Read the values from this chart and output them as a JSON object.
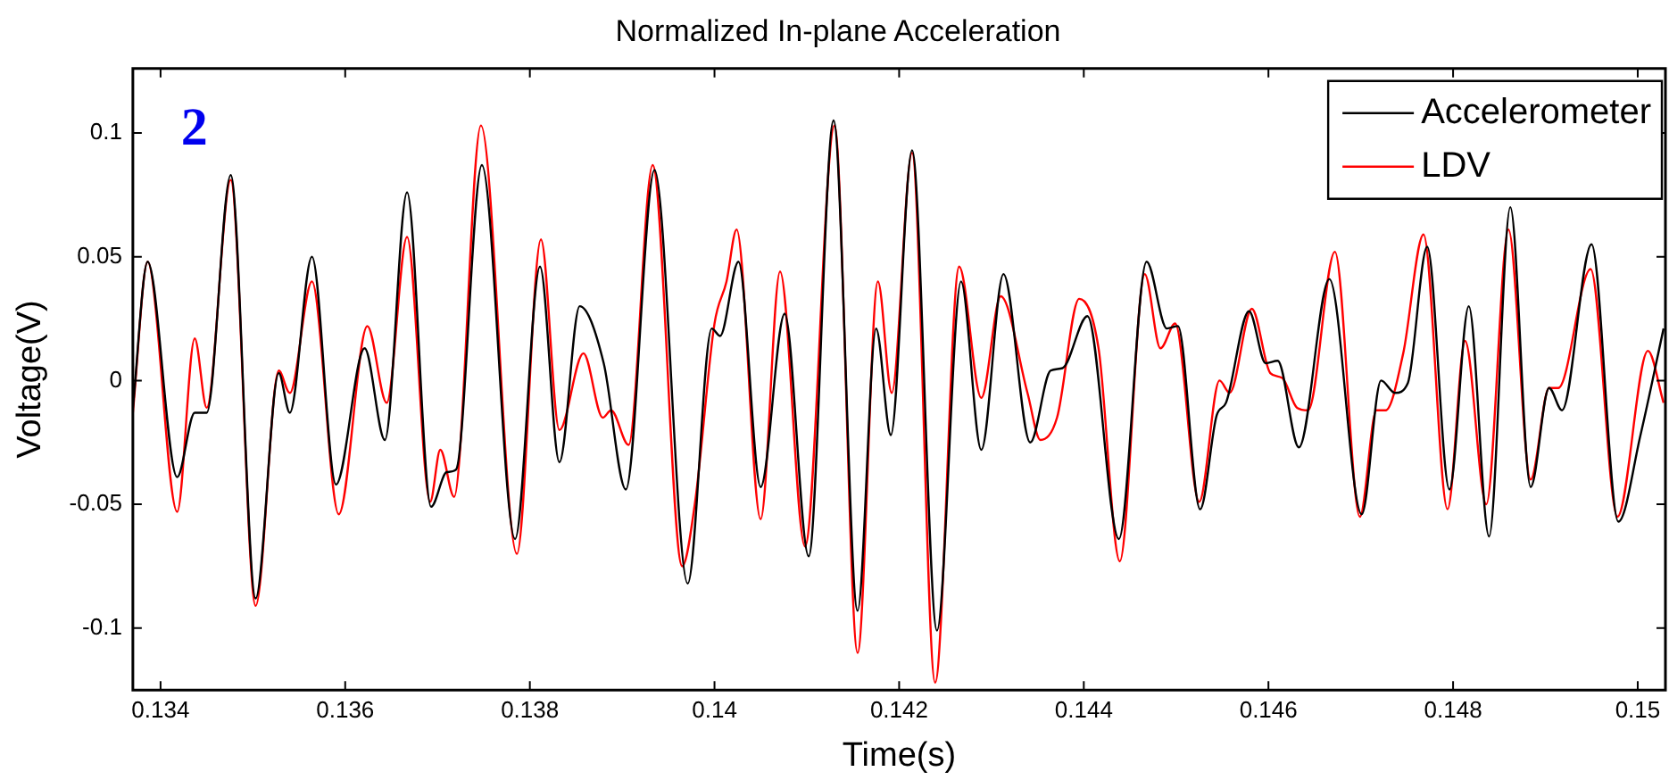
{
  "chart_data": {
    "type": "line",
    "title": "Normalized In-plane Acceleration",
    "xlabel": "Time(s)",
    "ylabel": "Voltage(V)",
    "annotations": [
      "2"
    ],
    "xlim": [
      0.1337,
      0.1503
    ],
    "xticks": [
      0.134,
      0.136,
      0.138,
      0.14,
      0.142,
      0.144,
      0.146,
      0.148,
      0.15
    ],
    "ylim": [
      -0.125,
      0.126
    ],
    "yticks": [
      -0.1,
      -0.05,
      0,
      0.05,
      0.1
    ],
    "grid": false,
    "legend": "top right",
    "line_style": "solid",
    "marker": "none",
    "series": [
      {
        "name": "Accelerometer",
        "color": "#000000",
        "x": [
          0.1337,
          0.13386,
          0.13418,
          0.13437,
          0.1345,
          0.13476,
          0.13503,
          0.13528,
          0.1354,
          0.13564,
          0.1359,
          0.13621,
          0.13643,
          0.13667,
          0.13693,
          0.1371,
          0.1372,
          0.13748,
          0.13784,
          0.13811,
          0.13832,
          0.13854,
          0.1388,
          0.13904,
          0.13935,
          0.13971,
          0.13997,
          0.14006,
          0.14026,
          0.1405,
          0.14076,
          0.14102,
          0.14129,
          0.14155,
          0.14175,
          0.14191,
          0.14214,
          0.14241,
          0.14267,
          0.14289,
          0.14313,
          0.14342,
          0.14364,
          0.14377,
          0.14404,
          0.14438,
          0.14468,
          0.1449,
          0.14502,
          0.14526,
          0.14544,
          0.14554,
          0.14579,
          0.14597,
          0.1461,
          0.14633,
          0.14666,
          0.14701,
          0.14722,
          0.14737,
          0.14751,
          0.14772,
          0.14796,
          0.14817,
          0.14839,
          0.14862,
          0.14884,
          0.14904,
          0.14918,
          0.1495,
          0.14979,
          0.15003,
          0.15028
        ],
        "values": [
          -0.011,
          0.048,
          -0.039,
          -0.013,
          -0.013,
          0.083,
          -0.088,
          0.003,
          -0.013,
          0.05,
          -0.042,
          0.013,
          -0.024,
          0.076,
          -0.051,
          -0.037,
          -0.036,
          0.087,
          -0.064,
          0.046,
          -0.033,
          0.03,
          0.007,
          -0.044,
          0.085,
          -0.082,
          0.021,
          0.018,
          0.048,
          -0.043,
          0.027,
          -0.071,
          0.105,
          -0.093,
          0.021,
          -0.022,
          0.093,
          -0.101,
          0.04,
          -0.028,
          0.043,
          -0.025,
          0.004,
          0.005,
          0.026,
          -0.064,
          0.048,
          0.021,
          0.022,
          -0.052,
          -0.014,
          -0.009,
          0.028,
          0.007,
          0.008,
          -0.027,
          0.041,
          -0.054,
          0,
          -0.005,
          -0.001,
          0.054,
          -0.044,
          0.03,
          -0.063,
          0.07,
          -0.043,
          -0.003,
          -0.012,
          0.055,
          -0.057,
          -0.022,
          0.021
        ]
      },
      {
        "name": "LDV",
        "color": "#ff0000",
        "x": [
          0.1337,
          0.13386,
          0.13418,
          0.13437,
          0.1345,
          0.13476,
          0.13503,
          0.13528,
          0.1354,
          0.13564,
          0.13593,
          0.13624,
          0.13645,
          0.13667,
          0.13692,
          0.13703,
          0.13718,
          0.13747,
          0.13786,
          0.13812,
          0.13832,
          0.13858,
          0.13879,
          0.13888,
          0.13907,
          0.13933,
          0.13965,
          0.13979,
          0.14,
          0.14013,
          0.14024,
          0.1405,
          0.14071,
          0.14098,
          0.1413,
          0.14155,
          0.14177,
          0.14192,
          0.14214,
          0.14239,
          0.14265,
          0.14289,
          0.1431,
          0.14339,
          0.14353,
          0.14371,
          0.14395,
          0.14416,
          0.14439,
          0.14466,
          0.14483,
          0.14499,
          0.14525,
          0.14547,
          0.14558,
          0.14582,
          0.14602,
          0.14615,
          0.14631,
          0.14643,
          0.14672,
          0.14699,
          0.14717,
          0.14727,
          0.14746,
          0.14768,
          0.14794,
          0.14813,
          0.14836,
          0.1486,
          0.14884,
          0.14904,
          0.14914,
          0.14949,
          0.14978,
          0.15011,
          0.15028
        ],
        "values": [
          -0.013,
          0.048,
          -0.053,
          0.017,
          -0.011,
          0.081,
          -0.091,
          0.004,
          -0.005,
          0.04,
          -0.054,
          0.022,
          -0.009,
          0.058,
          -0.049,
          -0.028,
          -0.047,
          0.103,
          -0.07,
          0.057,
          -0.02,
          0.011,
          -0.015,
          -0.012,
          -0.026,
          0.087,
          -0.075,
          -0.049,
          0.023,
          0.04,
          0.061,
          -0.056,
          0.044,
          -0.067,
          0.103,
          -0.11,
          0.04,
          -0.005,
          0.092,
          -0.122,
          0.046,
          -0.007,
          0.034,
          -0.005,
          -0.024,
          -0.015,
          0.033,
          0.013,
          -0.073,
          0.043,
          0.013,
          0.023,
          -0.049,
          0,
          -0.005,
          0.029,
          0.003,
          0.001,
          -0.011,
          -0.012,
          0.052,
          -0.055,
          -0.012,
          -0.012,
          0.011,
          0.059,
          -0.052,
          0.016,
          -0.05,
          0.061,
          -0.04,
          -0.003,
          -0.003,
          0.045,
          -0.055,
          0.012,
          -0.009
        ]
      }
    ]
  }
}
